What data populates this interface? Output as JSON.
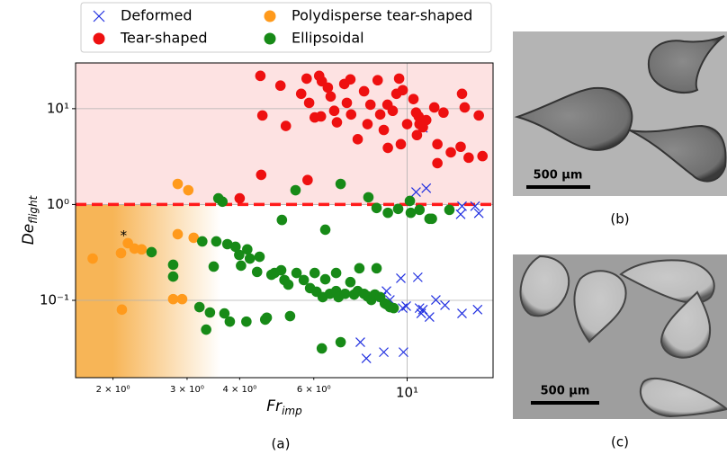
{
  "chart_data": {
    "type": "scatter",
    "caption": "(a)",
    "xlabel": {
      "text": "Fr",
      "subscript": "imp"
    },
    "ylabel": {
      "text": "De",
      "subscript": "flight"
    },
    "xscale": "log",
    "yscale": "log",
    "xlim": [
      1.63,
      16
    ],
    "ylim": [
      0.0156,
      30
    ],
    "xticks": [
      {
        "value": 10,
        "label": "10¹"
      }
    ],
    "xminor_ticks": [
      {
        "value": 2,
        "label": "2 × 10⁰"
      },
      {
        "value": 3,
        "label": "3 × 10⁰"
      },
      {
        "value": 4,
        "label": "4 × 10⁰"
      },
      {
        "value": 6,
        "label": "6 × 10⁰"
      }
    ],
    "yticks": [
      {
        "value": 0.1,
        "label": "10⁻¹"
      },
      {
        "value": 1,
        "label": "10⁰"
      },
      {
        "value": 10,
        "label": "10¹"
      }
    ],
    "grid": true,
    "regions": [
      {
        "above": 1,
        "color": "#fde2e2"
      },
      {
        "below": 1,
        "color": "#f7b557",
        "fade": [
          2,
          3.6
        ]
      }
    ],
    "hline": {
      "y": 1,
      "color": "#ff1a1a",
      "dashed": true
    },
    "annotations": [
      {
        "text": "*",
        "x": 2.12,
        "y": 0.47
      }
    ],
    "legend": "top",
    "series": [
      {
        "name": "Deformed",
        "color": "#1f2ee0",
        "marker": "x",
        "x": [
          10.5,
          11.1,
          10.9,
          14.5,
          13.5,
          13.4,
          14.8,
          8.93,
          9.1,
          9.66,
          9.76,
          9.95,
          10.6,
          10.7,
          10.8,
          10.9,
          11.3,
          11.7,
          12.3,
          13.5,
          14.7,
          7.74,
          8.0,
          8.8,
          9.8,
          8.7
        ],
        "y": [
          1.35,
          1.48,
          6.3,
          0.96,
          0.96,
          0.79,
          0.81,
          0.125,
          0.101,
          0.17,
          0.083,
          0.087,
          0.174,
          0.083,
          0.073,
          0.08,
          0.067,
          0.101,
          0.089,
          0.073,
          0.08,
          0.0366,
          0.0248,
          0.0288,
          0.0288,
          0.108
        ]
      },
      {
        "name": "Tear-shaped",
        "color": "#ee1010",
        "marker": "o",
        "x": [
          4.48,
          4.53,
          5.0,
          5.15,
          5.6,
          5.77,
          5.85,
          6.03,
          6.18,
          6.27,
          6.24,
          6.48,
          6.58,
          6.71,
          6.81,
          7.09,
          7.19,
          7.33,
          7.36,
          7.63,
          7.9,
          8.05,
          8.18,
          8.51,
          8.63,
          8.8,
          8.98,
          9.0,
          9.24,
          9.43,
          9.57,
          9.76,
          9.66,
          10.0,
          10.35,
          10.5,
          10.55,
          10.65,
          10.7,
          10.9,
          11.1,
          11.6,
          11.8,
          11.8,
          12.2,
          12.7,
          13.4,
          13.5,
          13.7,
          14.0,
          14.8,
          15.1,
          4.5,
          4.0,
          5.8
        ],
        "y": [
          22,
          8.5,
          17.4,
          6.6,
          14.3,
          20.6,
          11.5,
          8.1,
          22,
          19.3,
          8.3,
          16.6,
          13.4,
          9.5,
          7.2,
          18.1,
          11.5,
          20.2,
          8.7,
          4.8,
          15.2,
          6.9,
          11.0,
          19.8,
          8.7,
          6.0,
          11.0,
          3.9,
          9.5,
          14.3,
          20.6,
          15.6,
          4.26,
          6.9,
          12.6,
          9.1,
          5.3,
          8.3,
          6.9,
          6.4,
          7.6,
          10.3,
          4.26,
          2.7,
          9.1,
          3.5,
          4.0,
          14.3,
          10.3,
          3.08,
          8.5,
          3.2,
          2.04,
          1.16,
          1.8
        ]
      },
      {
        "name": "Polydisperse tear-shaped",
        "color": "#ff9a1c",
        "marker": "o",
        "x": [
          1.79,
          2.09,
          2.17,
          2.25,
          2.34,
          2.1,
          2.85,
          3.02,
          2.85,
          3.11,
          2.78,
          2.92
        ],
        "y": [
          0.273,
          0.311,
          0.395,
          0.347,
          0.34,
          0.08,
          1.64,
          1.41,
          0.49,
          0.45,
          0.103,
          0.103
        ]
      },
      {
        "name": "Ellipsoidal",
        "color": "#178a17",
        "marker": "o",
        "x": [
          2.47,
          2.78,
          2.78,
          3.26,
          3.52,
          3.47,
          3.74,
          3.99,
          3.91,
          4.17,
          4.03,
          4.23,
          4.4,
          4.46,
          4.76,
          4.84,
          5.02,
          5.11,
          5.22,
          5.46,
          5.68,
          5.88,
          6.03,
          6.09,
          6.3,
          6.39,
          6.55,
          6.78,
          6.78,
          6.87,
          7.12,
          7.33,
          7.48,
          7.63,
          7.7,
          7.9,
          8.05,
          8.22,
          8.46,
          8.38,
          8.63,
          8.85,
          8.93,
          9.1,
          9.29,
          3.21,
          3.4,
          3.68,
          4.15,
          4.6,
          5.27,
          6.27,
          6.95,
          3.33,
          3.79,
          4.64,
          3.64,
          3.56,
          5.43,
          6.39,
          6.95,
          5.04,
          8.09,
          8.46,
          9.0,
          9.52,
          10.15,
          10.7,
          11.3,
          11.45,
          12.6,
          10.2
        ],
        "y": [
          0.318,
          0.235,
          0.177,
          0.412,
          0.412,
          0.225,
          0.386,
          0.298,
          0.362,
          0.34,
          0.23,
          0.273,
          0.198,
          0.285,
          0.185,
          0.193,
          0.206,
          0.163,
          0.146,
          0.193,
          0.163,
          0.134,
          0.193,
          0.123,
          0.108,
          0.166,
          0.117,
          0.193,
          0.125,
          0.108,
          0.117,
          0.155,
          0.115,
          0.125,
          0.216,
          0.117,
          0.11,
          0.101,
          0.216,
          0.115,
          0.108,
          0.093,
          0.091,
          0.085,
          0.083,
          0.085,
          0.0747,
          0.073,
          0.06,
          0.063,
          0.0685,
          0.0315,
          0.0366,
          0.0495,
          0.06,
          0.066,
          1.07,
          1.16,
          1.41,
          0.546,
          1.64,
          0.69,
          1.19,
          0.92,
          0.82,
          0.9,
          1.09,
          0.88,
          0.71,
          0.71,
          0.88,
          0.82
        ]
      }
    ]
  },
  "images": [
    {
      "caption": "(b)",
      "scale_bar": "500 µm"
    },
    {
      "caption": "(c)",
      "scale_bar": "500 µm"
    }
  ]
}
